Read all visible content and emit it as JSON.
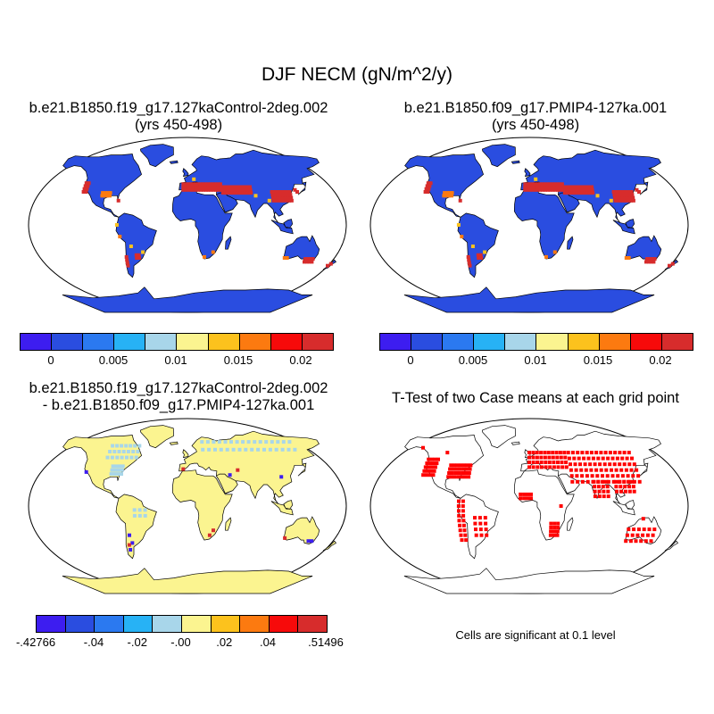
{
  "figure": {
    "title": "DJF NECM (gN/m^2/y)"
  },
  "panels": [
    {
      "title_line1": "b.e21.B1850.f19_g17.127kaControl-2deg.002",
      "title_line2": "(yrs 450-498)"
    },
    {
      "title_line1": "b.e21.B1850.f09_g17.PMIP4-127ka.001",
      "title_line2": "(yrs 450-498)"
    },
    {
      "title_line1": "b.e21.B1850.f19_g17.127kaControl-2deg.002",
      "title_line2": "- b.e21.B1850.f09_g17.PMIP4-127ka.001"
    },
    {
      "title_line1": "T-Test of two Case means at each grid point"
    }
  ],
  "significance_note": "Cells are significant at 0.1 level",
  "colorbars": {
    "mean": {
      "colors": [
        "#3d1df0",
        "#2a4de0",
        "#2b79f0",
        "#27b2f5",
        "#a8d6ea",
        "#fbf490",
        "#fcc21d",
        "#fc7a10",
        "#f70a0a",
        "#d72c2c"
      ],
      "tick_labels": [
        "0",
        "0.005",
        "0.01",
        "0.015",
        "0.02"
      ]
    },
    "difference": {
      "colors": [
        "#3d1df0",
        "#2a4de0",
        "#2b79f0",
        "#27b2f5",
        "#a8d6ea",
        "#fbf490",
        "#fcc21d",
        "#fc7a10",
        "#f70a0a",
        "#d72c2c"
      ],
      "tick_labels": [
        "-.42766",
        "-.04",
        "-.02",
        "-.00",
        ".02",
        ".04",
        ".51496"
      ]
    }
  },
  "map_colors": {
    "mean_land": "#2a4de0",
    "difference_land": "#fbf490",
    "significant_cells": "#ff0000",
    "hotspot_high": "#d72c2c",
    "hotspot_mid": "#fc7a10",
    "hotspot_low": "#fcc21d",
    "cool_cells": "#a8d6ea"
  }
}
